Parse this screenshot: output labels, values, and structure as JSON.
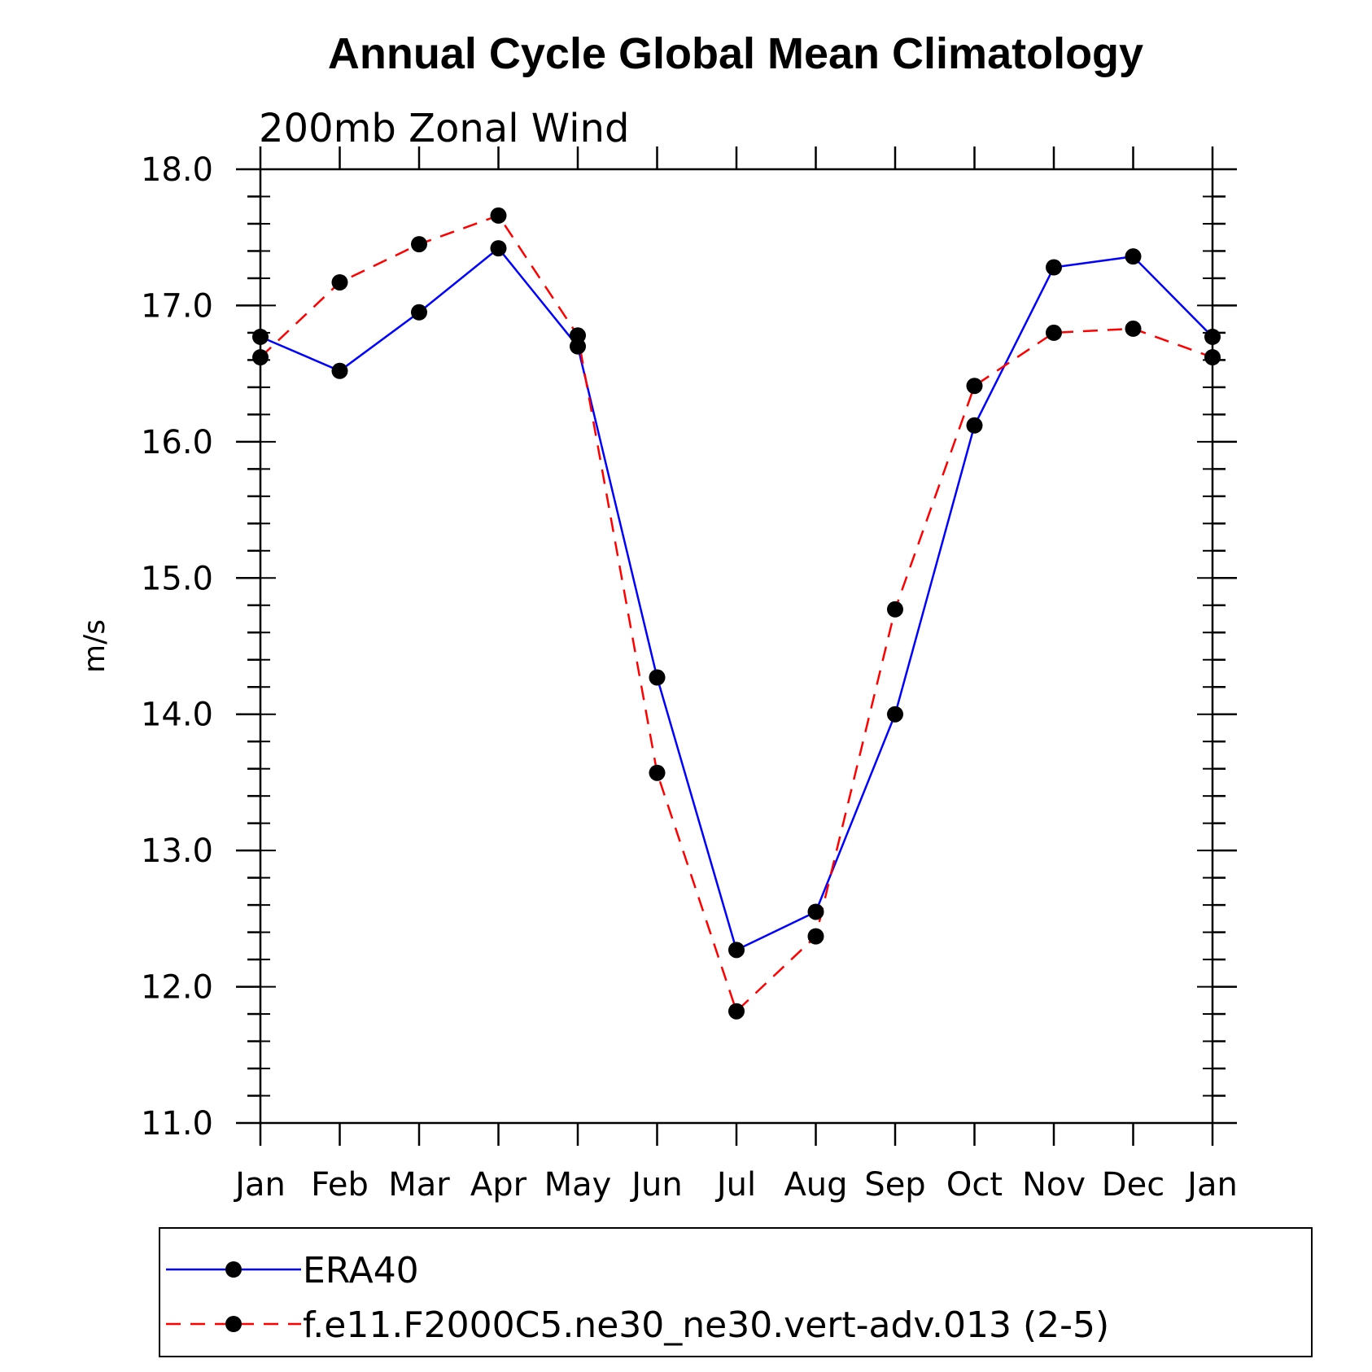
{
  "chart_data": {
    "type": "line",
    "title": "Annual Cycle Global Mean Climatology",
    "subtitle": "200mb Zonal Wind",
    "xlabel": "",
    "ylabel": "m/s",
    "categories": [
      "Jan",
      "Feb",
      "Mar",
      "Apr",
      "May",
      "Jun",
      "Jul",
      "Aug",
      "Sep",
      "Oct",
      "Nov",
      "Dec",
      "Jan"
    ],
    "ylim": [
      11.0,
      18.0
    ],
    "yticks": [
      "11.0",
      "12.0",
      "13.0",
      "14.0",
      "15.0",
      "16.0",
      "17.0",
      "18.0"
    ],
    "grid": false,
    "legend_position": "bottom",
    "series": [
      {
        "name": "ERA40",
        "values": [
          16.77,
          16.52,
          16.95,
          17.42,
          16.7,
          14.27,
          12.27,
          12.55,
          14.0,
          16.12,
          17.28,
          17.36,
          16.77
        ],
        "color": "#0000ff",
        "dash": "solid"
      },
      {
        "name": "f.e11.F2000C5.ne30_ne30.vert-adv.013 (2-5)",
        "values": [
          16.62,
          17.17,
          17.45,
          17.66,
          16.78,
          13.57,
          11.82,
          12.37,
          14.77,
          16.41,
          16.8,
          16.83,
          16.62
        ],
        "color": "#ff0000",
        "dash": "dashed"
      }
    ]
  }
}
